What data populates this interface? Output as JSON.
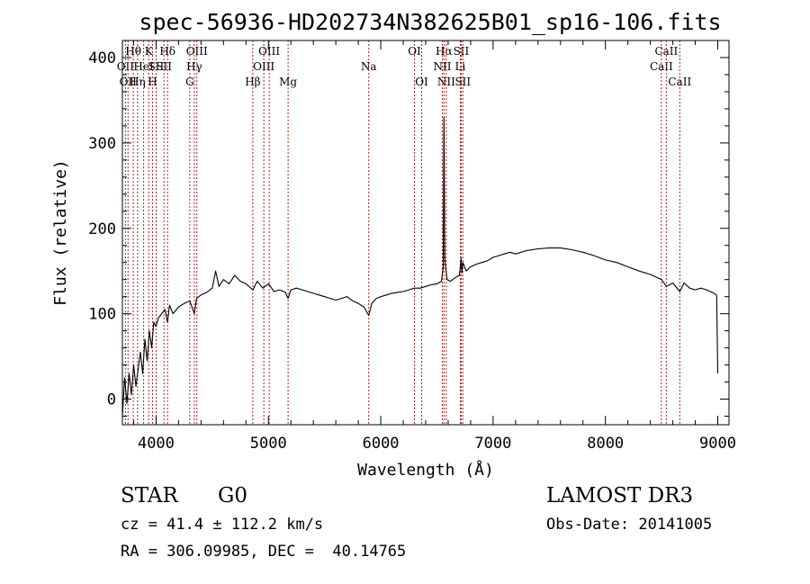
{
  "chart_data": {
    "type": "line",
    "title": "spec-56936-HD202734N382625B01_sp16-106.fits",
    "xlabel": "Wavelength (Å)",
    "ylabel": "Flux (relative)",
    "xlim": [
      3700,
      9100
    ],
    "ylim": [
      -30,
      420
    ],
    "xticks": [
      4000,
      5000,
      6000,
      7000,
      8000,
      9000
    ],
    "yticks": [
      0,
      100,
      200,
      300,
      400
    ],
    "xtick_labels": [
      "4000",
      "5000",
      "6000",
      "7000",
      "8000",
      "9000"
    ],
    "ytick_labels": [
      "0",
      "100",
      "200",
      "300",
      "400"
    ],
    "series": [
      {
        "name": "spectrum",
        "x": [
          3700,
          3720,
          3740,
          3760,
          3780,
          3800,
          3820,
          3840,
          3860,
          3880,
          3900,
          3920,
          3940,
          3960,
          3980,
          4000,
          4020,
          4050,
          4080,
          4101,
          4120,
          4150,
          4200,
          4250,
          4300,
          4340,
          4360,
          4400,
          4450,
          4500,
          4530,
          4560,
          4600,
          4650,
          4700,
          4750,
          4800,
          4861,
          4900,
          4950,
          5000,
          5050,
          5100,
          5150,
          5175,
          5200,
          5250,
          5300,
          5350,
          5400,
          5450,
          5500,
          5550,
          5600,
          5650,
          5700,
          5750,
          5800,
          5850,
          5893,
          5920,
          5960,
          6000,
          6050,
          6100,
          6150,
          6200,
          6250,
          6300,
          6350,
          6400,
          6450,
          6500,
          6540,
          6556,
          6563,
          6570,
          6590,
          6620,
          6660,
          6700,
          6716,
          6722,
          6731,
          6760,
          6800,
          6850,
          6900,
          6950,
          7000,
          7050,
          7100,
          7150,
          7200,
          7300,
          7400,
          7500,
          7600,
          7700,
          7800,
          7900,
          8000,
          8100,
          8200,
          8300,
          8400,
          8500,
          8542,
          8600,
          8662,
          8700,
          8750,
          8800,
          8850,
          8900,
          8950,
          8990,
          9000
        ],
        "y": [
          -20,
          25,
          -5,
          30,
          5,
          40,
          15,
          35,
          55,
          30,
          70,
          45,
          80,
          60,
          90,
          85,
          95,
          100,
          105,
          90,
          110,
          100,
          108,
          112,
          115,
          100,
          118,
          122,
          125,
          130,
          150,
          132,
          140,
          135,
          145,
          138,
          135,
          128,
          138,
          130,
          135,
          126,
          128,
          125,
          118,
          128,
          130,
          128,
          126,
          124,
          122,
          120,
          118,
          116,
          118,
          120,
          115,
          112,
          108,
          98,
          112,
          118,
          120,
          122,
          124,
          125,
          126,
          128,
          130,
          130,
          132,
          134,
          135,
          138,
          155,
          330,
          165,
          140,
          138,
          142,
          145,
          165,
          148,
          160,
          150,
          155,
          158,
          160,
          162,
          166,
          168,
          170,
          172,
          170,
          174,
          176,
          177,
          177,
          175,
          172,
          168,
          163,
          160,
          155,
          150,
          146,
          140,
          132,
          136,
          126,
          136,
          130,
          128,
          130,
          128,
          125,
          122,
          30
        ]
      }
    ],
    "line_markers": [
      {
        "wavelength": 3727,
        "label": "OII",
        "row": 2
      },
      {
        "wavelength": 3750,
        "label": "OII",
        "row": 3
      },
      {
        "wavelength": 3797,
        "label": "Hθ",
        "row": 1
      },
      {
        "wavelength": 3835,
        "label": "Hη",
        "row": 3
      },
      {
        "wavelength": 3889,
        "label": "HeI",
        "row": 2
      },
      {
        "wavelength": 3934,
        "label": "K",
        "row": 1
      },
      {
        "wavelength": 3968,
        "label": "H",
        "row": 3
      },
      {
        "wavelength": 4000,
        "label": "SII",
        "row": 2
      },
      {
        "wavelength": 4070,
        "label": "SII",
        "row": 2
      },
      {
        "wavelength": 4102,
        "label": "Hδ",
        "row": 1
      },
      {
        "wavelength": 4300,
        "label": "G",
        "row": 3
      },
      {
        "wavelength": 4340,
        "label": "Hγ",
        "row": 2
      },
      {
        "wavelength": 4363,
        "label": "OIII",
        "row": 1
      },
      {
        "wavelength": 4861,
        "label": "Hβ",
        "row": 3
      },
      {
        "wavelength": 4959,
        "label": "OIII",
        "row": 2
      },
      {
        "wavelength": 5007,
        "label": "OIII",
        "row": 1
      },
      {
        "wavelength": 5175,
        "label": "Mg",
        "row": 3
      },
      {
        "wavelength": 5893,
        "label": "Na",
        "row": 2
      },
      {
        "wavelength": 6300,
        "label": "OI",
        "row": 1
      },
      {
        "wavelength": 6364,
        "label": "OI",
        "row": 3
      },
      {
        "wavelength": 6548,
        "label": "NII",
        "row": 2
      },
      {
        "wavelength": 6563,
        "label": "Hα",
        "row": 1
      },
      {
        "wavelength": 6583,
        "label": "NII",
        "row": 3
      },
      {
        "wavelength": 6708,
        "label": "Li",
        "row": 2
      },
      {
        "wavelength": 6716,
        "label": "SII",
        "row": 1
      },
      {
        "wavelength": 6731,
        "label": "SII",
        "row": 3
      },
      {
        "wavelength": 8498,
        "label": "CaII",
        "row": 2
      },
      {
        "wavelength": 8542,
        "label": "CaII",
        "row": 1
      },
      {
        "wavelength": 8662,
        "label": "CaII",
        "row": 3
      }
    ]
  },
  "info": {
    "object_class": "STAR",
    "subclass": "G0",
    "survey": "LAMOST DR3",
    "redshift_text": "cz = 41.4 ± 112.2 km/s",
    "obs_date_text": "Obs-Date: 20141005",
    "coords_text": "RA = 306.09985, DEC =  40.14765"
  },
  "colors": {
    "marker": "#b22222",
    "line": "#000000",
    "axis": "#000000"
  }
}
